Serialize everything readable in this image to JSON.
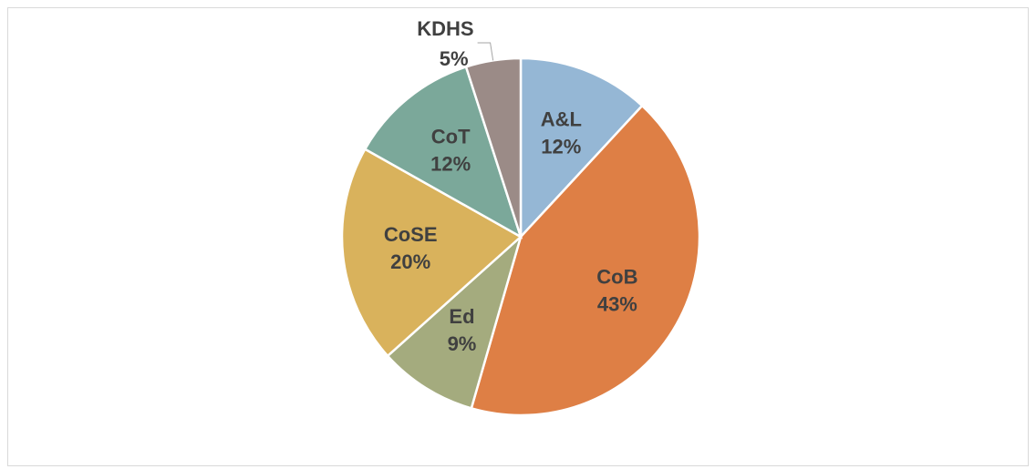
{
  "chart_data": {
    "type": "pie",
    "categories": [
      "A&L",
      "CoB",
      "Ed",
      "CoSE",
      "CoT",
      "KDHS"
    ],
    "values": [
      12,
      43,
      9,
      20,
      12,
      5
    ],
    "value_labels": [
      "12%",
      "43%",
      "9%",
      "20%",
      "12%",
      "5%"
    ],
    "colors": [
      "#95b7d5",
      "#de7f45",
      "#a4ab7e",
      "#d9b25c",
      "#7ba89a",
      "#9b8b87"
    ]
  }
}
